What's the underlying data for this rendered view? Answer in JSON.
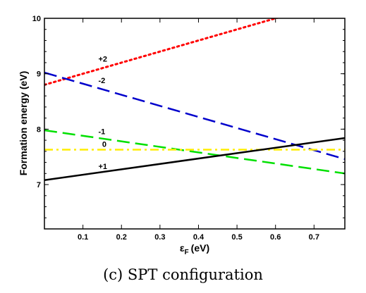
{
  "caption": "(c) SPT configuration",
  "chart_data": {
    "type": "line",
    "title": "",
    "xlabel": "(eV)",
    "xlabel_symbol": "ε",
    "xlabel_subscript": "F",
    "ylabel": "Formation energy (eV)",
    "xlim": [
      0,
      0.78
    ],
    "ylim": [
      6.2,
      10.0
    ],
    "xticks": [
      0.1,
      0.2,
      0.3,
      0.4,
      0.5,
      0.6,
      0.7
    ],
    "xtick_labels": [
      "0.1",
      "0.2",
      "0.3",
      "0.4",
      "0.5",
      "0.6",
      "0.7"
    ],
    "yticks": [
      7,
      8,
      9,
      10
    ],
    "ytick_labels": [
      "7",
      "8",
      "9",
      "10"
    ],
    "grid": false,
    "series": [
      {
        "name": "+2",
        "color": "#ff0000",
        "style": "dotted",
        "x": [
          0,
          0.78
        ],
        "y": [
          8.8,
          10.36
        ],
        "label_at": [
          0.14,
          9.22
        ]
      },
      {
        "name": "-2",
        "color": "#0000cc",
        "style": "dashed",
        "x": [
          0,
          0.78
        ],
        "y": [
          9.02,
          7.46
        ],
        "label_at": [
          0.14,
          8.83
        ]
      },
      {
        "name": "-1",
        "color": "#00e000",
        "style": "dashed",
        "x": [
          0,
          0.78
        ],
        "y": [
          7.98,
          7.2
        ],
        "label_at": [
          0.14,
          7.91
        ]
      },
      {
        "name": "0",
        "color": "#ffee00",
        "style": "dashdot",
        "x": [
          0,
          0.78
        ],
        "y": [
          7.63,
          7.63
        ],
        "label_at": [
          0.15,
          7.68
        ]
      },
      {
        "name": "+1",
        "color": "#000000",
        "style": "solid",
        "x": [
          0,
          0.78
        ],
        "y": [
          7.08,
          7.84
        ],
        "label_at": [
          0.14,
          7.28
        ]
      }
    ]
  }
}
